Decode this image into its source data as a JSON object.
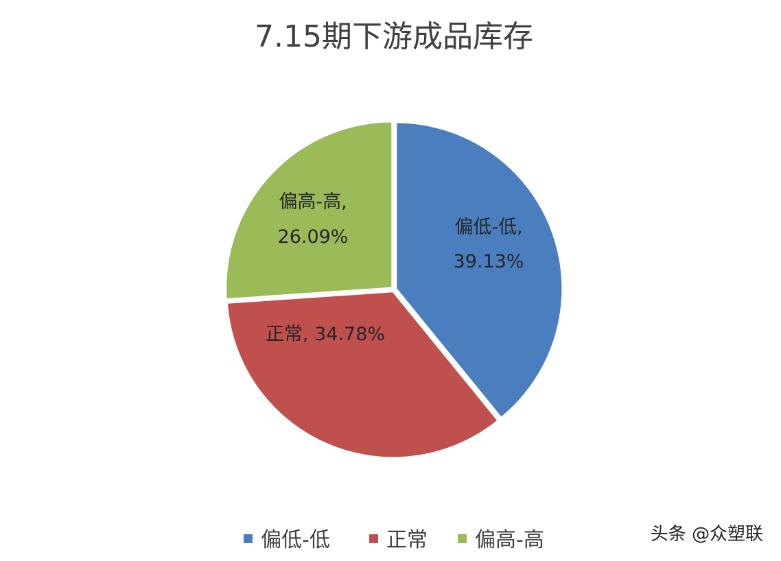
{
  "chart_data": {
    "type": "pie",
    "title": "7.15期下游成品库存",
    "categories": [
      "偏低-低",
      "正常",
      "偏高-高"
    ],
    "values": [
      39.13,
      34.78,
      26.09
    ],
    "unit": "%",
    "colors": [
      "#4a7ebf",
      "#c0504d",
      "#9bbb59"
    ],
    "data_labels": [
      [
        "偏低-低,",
        "39.13%"
      ],
      [
        "正常, 34.78%"
      ],
      [
        "偏高-高,",
        "26.09%"
      ]
    ],
    "legend": [
      "偏低-低",
      "正常",
      "偏高-高"
    ],
    "legend_position": "bottom"
  },
  "watermark": "头条 @众塑联"
}
